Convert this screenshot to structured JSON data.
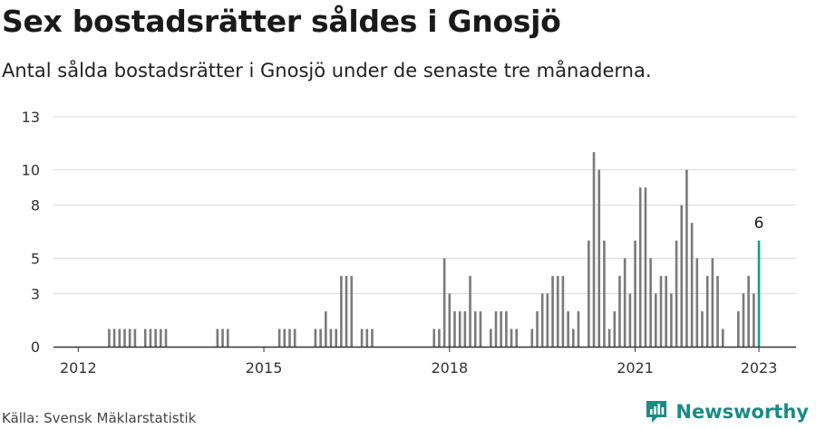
{
  "header": {
    "title": "Sex bostadsrätter såldes i Gnosjö",
    "subtitle": "Antal sålda bostadsrätter i Gnosjö under de senaste tre månaderna."
  },
  "footer": {
    "source": "Källa: Svensk Mäklarstatistik",
    "brand": "Newsworthy"
  },
  "colors": {
    "bar": "#7a7a7a",
    "highlight": "#1a9a8e",
    "grid": "#d9d9d9",
    "axis": "#333333",
    "brand": "#1a8a86"
  },
  "chart_data": {
    "type": "bar",
    "ylim": [
      0,
      13
    ],
    "y_ticks": [
      0,
      3,
      5,
      8,
      10,
      13
    ],
    "x_ticks": [
      2012,
      2015,
      2018,
      2021,
      2023
    ],
    "xlim": [
      2011.6,
      2023.6
    ],
    "grid": true,
    "highlight_label": "6",
    "series": [
      {
        "x": [
          2012.5,
          2012.583,
          2012.667,
          2012.75,
          2012.833,
          2012.917,
          2013.083,
          2013.167,
          2013.25,
          2013.333,
          2013.417,
          2014.25,
          2014.333,
          2014.417,
          2015.25,
          2015.333,
          2015.417,
          2015.5,
          2015.833,
          2015.917,
          2016.0,
          2016.083,
          2016.167,
          2016.25,
          2016.333,
          2016.417,
          2016.583,
          2016.667,
          2016.75,
          2017.75,
          2017.833,
          2017.917,
          2018.0,
          2018.083,
          2018.167,
          2018.25,
          2018.333,
          2018.417,
          2018.5,
          2018.667,
          2018.75,
          2018.833,
          2018.917,
          2019.0,
          2019.083,
          2019.333,
          2019.417,
          2019.5,
          2019.583,
          2019.667,
          2019.75,
          2019.833,
          2019.917,
          2020.0,
          2020.083,
          2020.25,
          2020.333,
          2020.417,
          2020.5,
          2020.583,
          2020.667,
          2020.75,
          2020.833,
          2020.917,
          2021.0,
          2021.083,
          2021.167,
          2021.25,
          2021.333,
          2021.417,
          2021.5,
          2021.583,
          2021.667,
          2021.75,
          2021.833,
          2021.917,
          2022.0,
          2022.083,
          2022.167,
          2022.25,
          2022.333,
          2022.417,
          2022.667,
          2022.75,
          2022.833,
          2022.917,
          2023.0
        ],
        "values": [
          1,
          1,
          1,
          1,
          1,
          1,
          1,
          1,
          1,
          1,
          1,
          1,
          1,
          1,
          1,
          1,
          1,
          1,
          1,
          1,
          2,
          1,
          1,
          4,
          4,
          4,
          1,
          1,
          1,
          1,
          1,
          5,
          3,
          2,
          2,
          2,
          4,
          2,
          2,
          1,
          2,
          2,
          2,
          1,
          1,
          1,
          2,
          3,
          3,
          4,
          4,
          4,
          2,
          1,
          2,
          6,
          11,
          10,
          6,
          1,
          2,
          4,
          5,
          3,
          6,
          9,
          9,
          5,
          3,
          4,
          4,
          3,
          6,
          8,
          10,
          7,
          5,
          2,
          4,
          5,
          4,
          1,
          2,
          3,
          4,
          3,
          6
        ]
      }
    ]
  }
}
